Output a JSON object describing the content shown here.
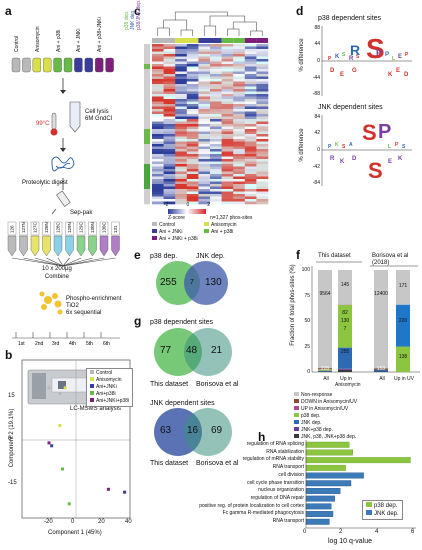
{
  "panels": {
    "a": "a",
    "b": "b",
    "c": "c",
    "d": "d",
    "e": "e",
    "f": "f",
    "g": "g",
    "h": "h"
  },
  "panel_a": {
    "conditions": [
      "Control",
      "Anisomycin",
      "Ani + p38i",
      "Ani + JNKi",
      "Ani + p38+JNKi"
    ],
    "temp": "99°C",
    "lysis": [
      "Cell lysis",
      "6M GndCl"
    ],
    "digest": "Proteolytic digest",
    "sepak": "Sep-pak",
    "tmt": [
      "126",
      "127N",
      "127C",
      "128N",
      "128C",
      "129N",
      "129C",
      "130N",
      "130C",
      "131"
    ],
    "combine": [
      "10 x 200µg",
      "Combine"
    ],
    "enrich": [
      "Phospho-enrichment",
      "TiO2",
      "6x sequential"
    ],
    "rounds": [
      "1st",
      "2nd",
      "3rd",
      "4th",
      "5th",
      "6th"
    ],
    "lcms": "LC-MSMS analysis"
  },
  "panel_b": {
    "xlabel": "Component 1 (45%)",
    "ylabel": "Component 2 (19.1%)",
    "xticks": [
      "-20",
      "0",
      "20",
      "40"
    ],
    "yticks": [
      "15",
      "0",
      "-15"
    ],
    "legend": [
      "Control",
      "Anisomycin",
      "Ani+JNKi",
      "Ani+p38i",
      "Ani+JNKi+p38i"
    ]
  },
  "panel_c": {
    "side_labels": [
      "p38 dep.",
      "JNK dep.",
      "p38/JNK dep."
    ],
    "zscore": "Z-score",
    "count": "n=1,327 phos-sites",
    "cb_ticks": [
      "-2",
      "0",
      "2"
    ],
    "legend": [
      "Control",
      "Anisomycin",
      "Ani + JNKi",
      "Ani + p38i",
      "Ani + JNKi + p38i"
    ]
  },
  "panel_d": {
    "title1": "p38 dependent sites",
    "title2": "JNK dependent sites",
    "ylabel": "% difference",
    "yticks1": [
      "88",
      "44",
      "0",
      "-44",
      "-88"
    ],
    "yticks2": [
      "84",
      "42",
      "0",
      "-42",
      "-84"
    ]
  },
  "panel_e": {
    "left": "p38 dep.",
    "right": "JNK dep.",
    "a": "255",
    "ab": "7",
    "b": "130"
  },
  "panel_g": {
    "title1": "p38 dependent sites",
    "title2": "JNK dependent sites",
    "v1": {
      "a": "77",
      "ab": "48",
      "b": "21",
      "la": "This dataset",
      "lb": "Borisova et al"
    },
    "v2": {
      "a": "63",
      "ab": "16",
      "b": "69",
      "la": "This dataset",
      "lb": "Borisova et al"
    }
  },
  "panel_f": {
    "header_left": "This dataset",
    "header_right": "Borisova et al (2018)",
    "ylabel": "Fraction of total phos-sites (%)",
    "yticks": [
      "0",
      "25",
      "50",
      "75",
      "100"
    ],
    "bars": [
      {
        "label": "All",
        "segments": [
          {
            "key": "jnk_p38_both",
            "value": 0.3
          },
          {
            "key": "jnk_p38",
            "value": 0.2
          },
          {
            "key": "jnk",
            "value": 0.8
          },
          {
            "key": "p38",
            "value": 1.4
          },
          {
            "key": "up",
            "value": 0.2
          },
          {
            "key": "down",
            "value": 0.9
          },
          {
            "key": "non",
            "value": 96.2
          }
        ],
        "annot": [
          {
            "text": "9564",
            "y": 76
          },
          {
            "text": "228",
            "y": 3
          }
        ]
      },
      {
        "label": "Up in Anisomycin",
        "segments": [
          {
            "key": "jnk_p38_both",
            "value": 2.1
          },
          {
            "key": "jnk_p38",
            "value": 1.0
          },
          {
            "key": "jnk",
            "value": 20.8
          },
          {
            "key": "p38",
            "value": 41.8
          },
          {
            "key": "up",
            "value": 0.3
          },
          {
            "key": "down",
            "value": 0
          },
          {
            "key": "non",
            "value": 34
          }
        ],
        "annot": [
          {
            "text": "145",
            "y": 85
          },
          {
            "text": "82",
            "y": 58
          },
          {
            "text": "130",
            "y": 50
          },
          {
            "text": "255",
            "y": 20
          },
          {
            "text": "7",
            "y": 42
          }
        ]
      },
      {
        "label": "All",
        "segments": [
          {
            "key": "jnk_p38_both",
            "value": 0.5
          },
          {
            "key": "jnk_p38",
            "value": 0
          },
          {
            "key": "jnk",
            "value": 1.9
          },
          {
            "key": "p38",
            "value": 0
          },
          {
            "key": "up",
            "value": 0
          },
          {
            "key": "down",
            "value": 1.2
          },
          {
            "key": "non",
            "value": 96.4
          }
        ],
        "annot": [
          {
            "text": "12400",
            "y": 76
          },
          {
            "text": "153",
            "y": 3
          }
        ]
      },
      {
        "label": "Up in UV",
        "segments": [
          {
            "key": "jnk_p38_both",
            "value": 0
          },
          {
            "key": "jnk_p38",
            "value": 0
          },
          {
            "key": "jnk",
            "value": 0
          },
          {
            "key": "p38",
            "value": 25
          },
          {
            "key": "up",
            "value": 0
          },
          {
            "key": "down",
            "value": 0
          },
          {
            "key": "jnk2",
            "value": 41
          },
          {
            "key": "non",
            "value": 34
          }
        ],
        "annot": [
          {
            "text": "171",
            "y": 84
          },
          {
            "text": "220",
            "y": 50
          },
          {
            "text": "138",
            "y": 15
          }
        ]
      }
    ],
    "legend": [
      {
        "key": "non",
        "label": "Non-response"
      },
      {
        "key": "down",
        "label": "DOWN in Anisomycin/UV"
      },
      {
        "key": "up",
        "label": "UP in Anisomycin/UV"
      },
      {
        "key": "p38",
        "label": "p38 dep."
      },
      {
        "key": "jnk",
        "label": "JNK dep."
      },
      {
        "key": "jnk_p38",
        "label": "JNK+p38 dep."
      },
      {
        "key": "jnk_p38_both",
        "label": "JNK, p38, JNK+p38 dep."
      }
    ]
  },
  "chart_data": {
    "type": "bar",
    "orientation": "horizontal",
    "categories": [
      "regulation of RNA splicing",
      "RNA stabilization",
      "regulation of mRNA stability",
      "RNA transport",
      "cell division",
      "cell cycle phase transition",
      "nucleus organization",
      "regulation of DNA repair",
      "positive reg. of protein localization to cell cortex",
      "Fc gamma R-mediated phagocytosis",
      "RNA transport"
    ],
    "series": [
      {
        "name": "p38 dep.",
        "values": [
          2.4,
          2.6,
          5.8,
          2.2,
          0,
          0,
          0,
          0,
          0,
          0,
          0
        ]
      },
      {
        "name": "JNK dep.",
        "values": [
          0,
          0,
          0,
          0,
          3.2,
          2.5,
          1.9,
          1.6,
          1.4,
          1.5,
          1.3
        ]
      }
    ],
    "xlabel": "log 10 q-value",
    "xticks": [
      "0",
      "2",
      "4",
      "6"
    ],
    "xlim": [
      0,
      6
    ]
  },
  "colors": {
    "control": "#b9b9b9",
    "anisomycin": "#d7e04a",
    "jnki": "#3a3c9c",
    "p38i": "#66bb47",
    "both": "#7b1f7a",
    "non": "#c7c7c7",
    "down": "#8b4a2b",
    "up": "#b24a93",
    "p38": "#8cc53f",
    "jnk": "#2e6ab3",
    "jnk_p38": "#6b3e98",
    "jnk_p38_both": "#3b3b3b",
    "jnk2": "#1f77c9",
    "venn_green": "#5fbf5f",
    "venn_blue": "#3d5aa8",
    "venn_teal": "#3c8f7e"
  }
}
